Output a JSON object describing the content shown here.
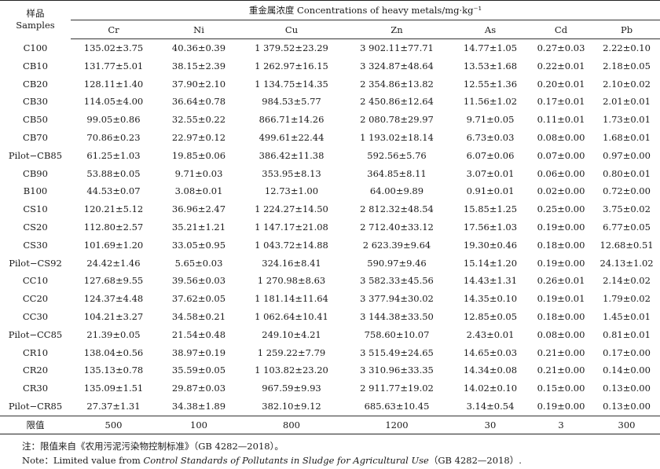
{
  "table": {
    "sample_header_cn": "样品",
    "sample_header_en": "Samples",
    "group_header": "重金属浓度 Concentrations of heavy metals/mg·kg⁻¹",
    "metals": [
      "Cr",
      "Ni",
      "Cu",
      "Zn",
      "As",
      "Cd",
      "Pb"
    ],
    "rows": [
      {
        "sample": "C100",
        "values": [
          "135.02±3.75",
          "40.36±0.39",
          "1 379.52±23.29",
          "3 902.11±77.71",
          "14.77±1.05",
          "0.27±0.03",
          "2.22±0.10"
        ]
      },
      {
        "sample": "CB10",
        "values": [
          "131.77±5.01",
          "38.15±2.39",
          "1 262.97±16.15",
          "3 324.87±48.64",
          "13.53±1.68",
          "0.22±0.01",
          "2.18±0.05"
        ]
      },
      {
        "sample": "CB20",
        "values": [
          "128.11±1.40",
          "37.90±2.10",
          "1 134.75±14.35",
          "2 354.86±13.82",
          "12.55±1.36",
          "0.20±0.01",
          "2.10±0.02"
        ]
      },
      {
        "sample": "CB30",
        "values": [
          "114.05±4.00",
          "36.64±0.78",
          "984.53±5.77",
          "2 450.86±12.64",
          "11.56±1.02",
          "0.17±0.01",
          "2.01±0.01"
        ]
      },
      {
        "sample": "CB50",
        "values": [
          "99.05±0.86",
          "32.55±0.22",
          "866.71±14.26",
          "2 080.78±29.97",
          "9.71±0.05",
          "0.11±0.01",
          "1.73±0.01"
        ]
      },
      {
        "sample": "CB70",
        "values": [
          "70.86±0.23",
          "22.97±0.12",
          "499.61±22.44",
          "1 193.02±18.14",
          "6.73±0.03",
          "0.08±0.00",
          "1.68±0.01"
        ]
      },
      {
        "sample": "Pilot−CB85",
        "values": [
          "61.25±1.03",
          "19.85±0.06",
          "386.42±11.38",
          "592.56±5.76",
          "6.07±0.06",
          "0.07±0.00",
          "0.97±0.00"
        ]
      },
      {
        "sample": "CB90",
        "values": [
          "53.88±0.05",
          "9.71±0.03",
          "353.95±8.13",
          "364.85±8.11",
          "3.07±0.01",
          "0.06±0.00",
          "0.80±0.01"
        ]
      },
      {
        "sample": "B100",
        "values": [
          "44.53±0.07",
          "3.08±0.01",
          "12.73±1.00",
          "64.00±9.89",
          "0.91±0.01",
          "0.02±0.00",
          "0.72±0.00"
        ]
      },
      {
        "sample": "CS10",
        "values": [
          "120.21±5.12",
          "36.96±2.47",
          "1 224.27±14.50",
          "2 812.32±48.54",
          "15.85±1.25",
          "0.25±0.00",
          "3.75±0.02"
        ]
      },
      {
        "sample": "CS20",
        "values": [
          "112.80±2.57",
          "35.21±1.21",
          "1 147.17±21.08",
          "2 712.40±33.12",
          "17.56±1.03",
          "0.19±0.00",
          "6.77±0.05"
        ]
      },
      {
        "sample": "CS30",
        "values": [
          "101.69±1.20",
          "33.05±0.95",
          "1 043.72±14.88",
          "2 623.39±9.64",
          "19.30±0.46",
          "0.18±0.00",
          "12.68±0.51"
        ]
      },
      {
        "sample": "Pilot−CS92",
        "values": [
          "24.42±1.46",
          "5.65±0.03",
          "324.16±8.41",
          "590.97±9.46",
          "15.14±1.20",
          "0.19±0.00",
          "24.13±1.02"
        ]
      },
      {
        "sample": "CC10",
        "values": [
          "127.68±9.55",
          "39.56±0.03",
          "1 270.98±8.63",
          "3 582.33±45.56",
          "14.43±1.31",
          "0.26±0.01",
          "2.14±0.02"
        ]
      },
      {
        "sample": "CC20",
        "values": [
          "124.37±4.48",
          "37.62±0.05",
          "1 181.14±11.64",
          "3 377.94±30.02",
          "14.35±0.10",
          "0.19±0.01",
          "1.79±0.02"
        ]
      },
      {
        "sample": "CC30",
        "values": [
          "104.21±3.27",
          "34.58±0.21",
          "1 062.64±10.41",
          "3 144.38±33.50",
          "12.85±0.05",
          "0.18±0.00",
          "1.45±0.01"
        ]
      },
      {
        "sample": "Pilot−CC85",
        "values": [
          "21.39±0.05",
          "21.54±0.48",
          "249.10±4.21",
          "758.60±10.07",
          "2.43±0.01",
          "0.08±0.00",
          "0.81±0.01"
        ]
      },
      {
        "sample": "CR10",
        "values": [
          "138.04±0.56",
          "38.97±0.19",
          "1 259.22±7.79",
          "3 515.49±24.65",
          "14.65±0.03",
          "0.21±0.00",
          "0.17±0.00"
        ]
      },
      {
        "sample": "CR20",
        "values": [
          "135.13±0.78",
          "35.59±0.05",
          "1 103.82±23.20",
          "3 310.96±33.35",
          "14.34±0.08",
          "0.21±0.00",
          "0.14±0.00"
        ]
      },
      {
        "sample": "CR30",
        "values": [
          "135.09±1.51",
          "29.87±0.03",
          "967.59±9.93",
          "2 911.77±19.02",
          "14.02±0.10",
          "0.15±0.00",
          "0.13±0.00"
        ]
      },
      {
        "sample": "Pilot−CR85",
        "values": [
          "27.37±1.31",
          "34.38±1.89",
          "382.10±9.12",
          "685.63±10.45",
          "3.14±0.54",
          "0.19±0.00",
          "0.13±0.00"
        ]
      }
    ],
    "limit_row": {
      "label": "限值",
      "values": [
        "500",
        "100",
        "800",
        "1200",
        "30",
        "3",
        "300"
      ]
    }
  },
  "notes": {
    "cn": "注：限值来自《农用污泥污染物控制标准》（GB 4282—2018）。",
    "en_prefix": "Note：Limited value from ",
    "en_italic": "Control Standards of Pollutants in Sludge for Agricultural Use",
    "en_suffix": "（GB 4282—2018）."
  }
}
